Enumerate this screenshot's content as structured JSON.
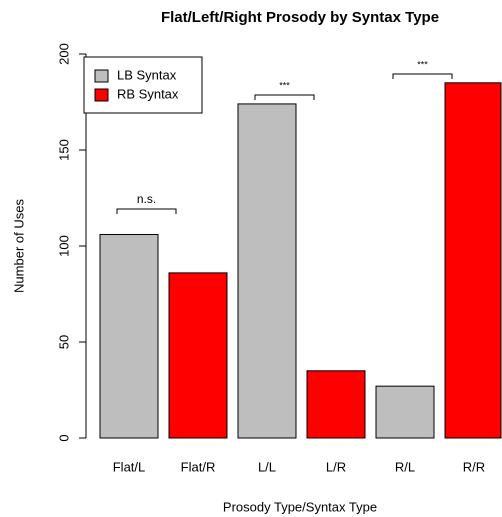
{
  "chart_data": {
    "type": "bar",
    "title": "Flat/Left/Right Prosody by Syntax Type",
    "x_label": "Prosody Type/Syntax Type",
    "y_label": "Number of Uses",
    "categories": [
      "Flat/L",
      "Flat/R",
      "L/L",
      "L/R",
      "R/L",
      "R/R"
    ],
    "values": [
      106,
      86,
      174,
      35,
      27,
      185
    ],
    "colors": [
      "#bebebe",
      "#ff0000",
      "#bebebe",
      "#ff0000",
      "#bebebe",
      "#ff0000"
    ],
    "legend": [
      {
        "name": "LB Syntax",
        "color": "#bebebe"
      },
      {
        "name": "RB Syntax",
        "color": "#ff0000"
      }
    ],
    "legend_position": "top-left",
    "annotations": [
      "n.s.",
      "***",
      "***"
    ],
    "ylim": [
      0,
      200
    ],
    "yticks": [
      0,
      50,
      100,
      150,
      200
    ]
  }
}
